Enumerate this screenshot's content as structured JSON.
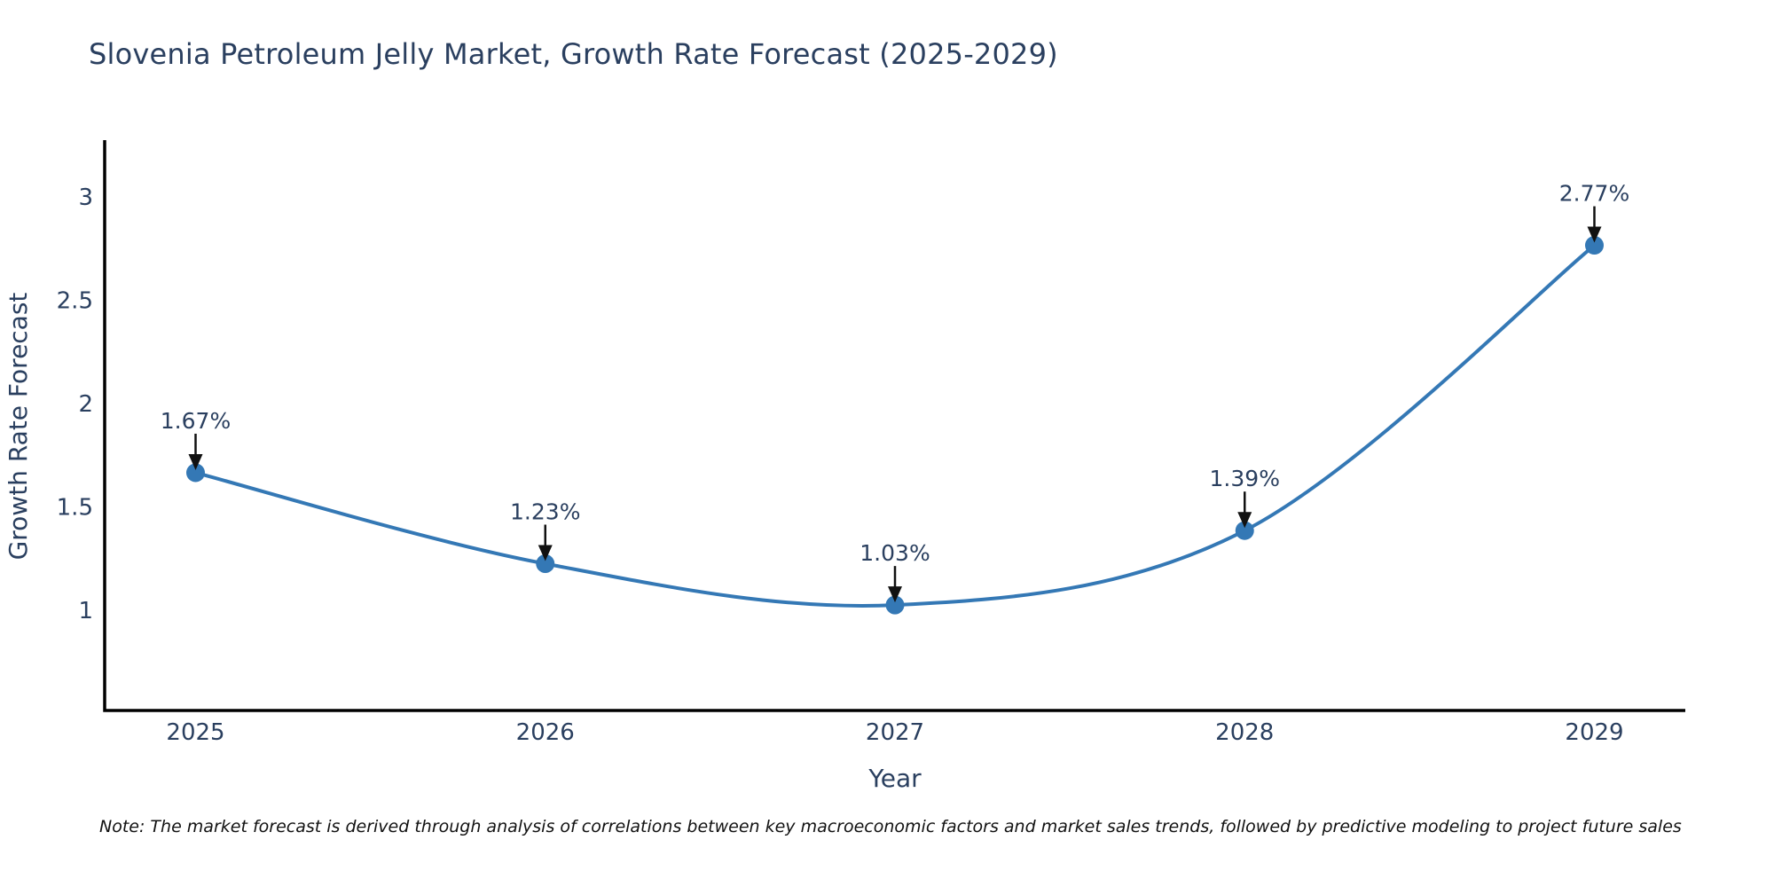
{
  "chart_data": {
    "type": "line",
    "title": "Slovenia Petroleum Jelly Market, Growth Rate Forecast (2025-2029)",
    "xlabel": "Year",
    "ylabel": "Growth Rate Forecast",
    "x": [
      2025,
      2026,
      2027,
      2028,
      2029
    ],
    "categories": [
      "2025",
      "2026",
      "2027",
      "2028",
      "2029"
    ],
    "values": [
      1.67,
      1.23,
      1.03,
      1.39,
      2.77
    ],
    "point_labels": [
      "1.67%",
      "1.23%",
      "1.03%",
      "1.39%",
      "2.77%"
    ],
    "yticks": [
      1,
      1.5,
      2,
      2.5,
      3
    ],
    "ylim": [
      0.52,
      3.27
    ],
    "xlim": [
      2024.74,
      2029.26
    ],
    "grid": false,
    "legend": "none",
    "smooth": true,
    "colors": {
      "line": "#3478b5",
      "marker": "#3478b5",
      "axis": "#000000",
      "tick_text": "#2a3f5f",
      "annotation_text": "#2a3f5f",
      "arrow": "#111111"
    }
  },
  "note": "Note: The market forecast is derived through analysis of correlations between key macroeconomic factors and market sales trends, followed by predictive modeling to project future sales"
}
